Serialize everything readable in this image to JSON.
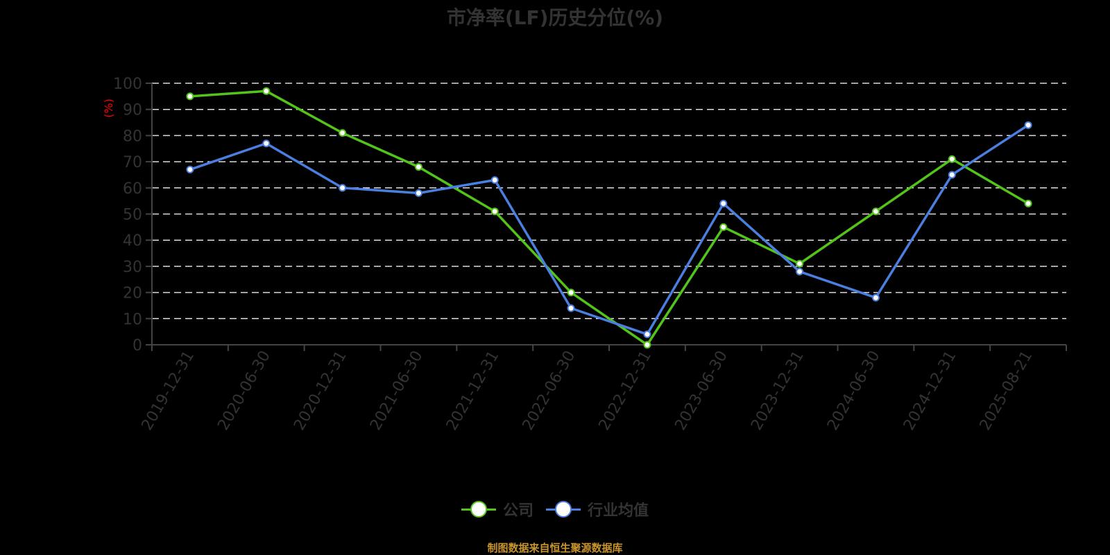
{
  "title": "市净率(LF)历史分位(%)",
  "source_note": "制图数据来自恒生聚源数据库",
  "legend": [
    {
      "name": "公司",
      "color": "#52c41a"
    },
    {
      "name": "行业均值",
      "color": "#4a7fe0"
    }
  ],
  "chart_data": {
    "type": "line",
    "title": "市净率(LF)历史分位(%)",
    "xlabel": "",
    "ylabel": "(%)",
    "ylim": [
      0,
      100
    ],
    "yticks": [
      0,
      10,
      20,
      30,
      40,
      50,
      60,
      70,
      80,
      90,
      100
    ],
    "grid": "horizontal dashed",
    "legend_position": "bottom",
    "categories": [
      "2019-12-31",
      "2020-06-30",
      "2020-12-31",
      "2021-06-30",
      "2021-12-31",
      "2022-06-30",
      "2022-12-31",
      "2023-06-30",
      "2023-12-31",
      "2024-06-30",
      "2024-12-31",
      "2025-08-21"
    ],
    "series": [
      {
        "name": "公司",
        "color": "#52c41a",
        "values": [
          95,
          97,
          81,
          68,
          51,
          20,
          0,
          45,
          31,
          51,
          71,
          54
        ]
      },
      {
        "name": "行业均值",
        "color": "#4a7fe0",
        "values": [
          67,
          77,
          60,
          58,
          63,
          14,
          4,
          54,
          28,
          18,
          65,
          84
        ]
      }
    ]
  },
  "colors": {
    "background": "#000000",
    "axis": "#444444",
    "grid": "#dddddd",
    "tick_label": "#333333",
    "ylabel": "#ff0000",
    "source": "#c9952a"
  }
}
